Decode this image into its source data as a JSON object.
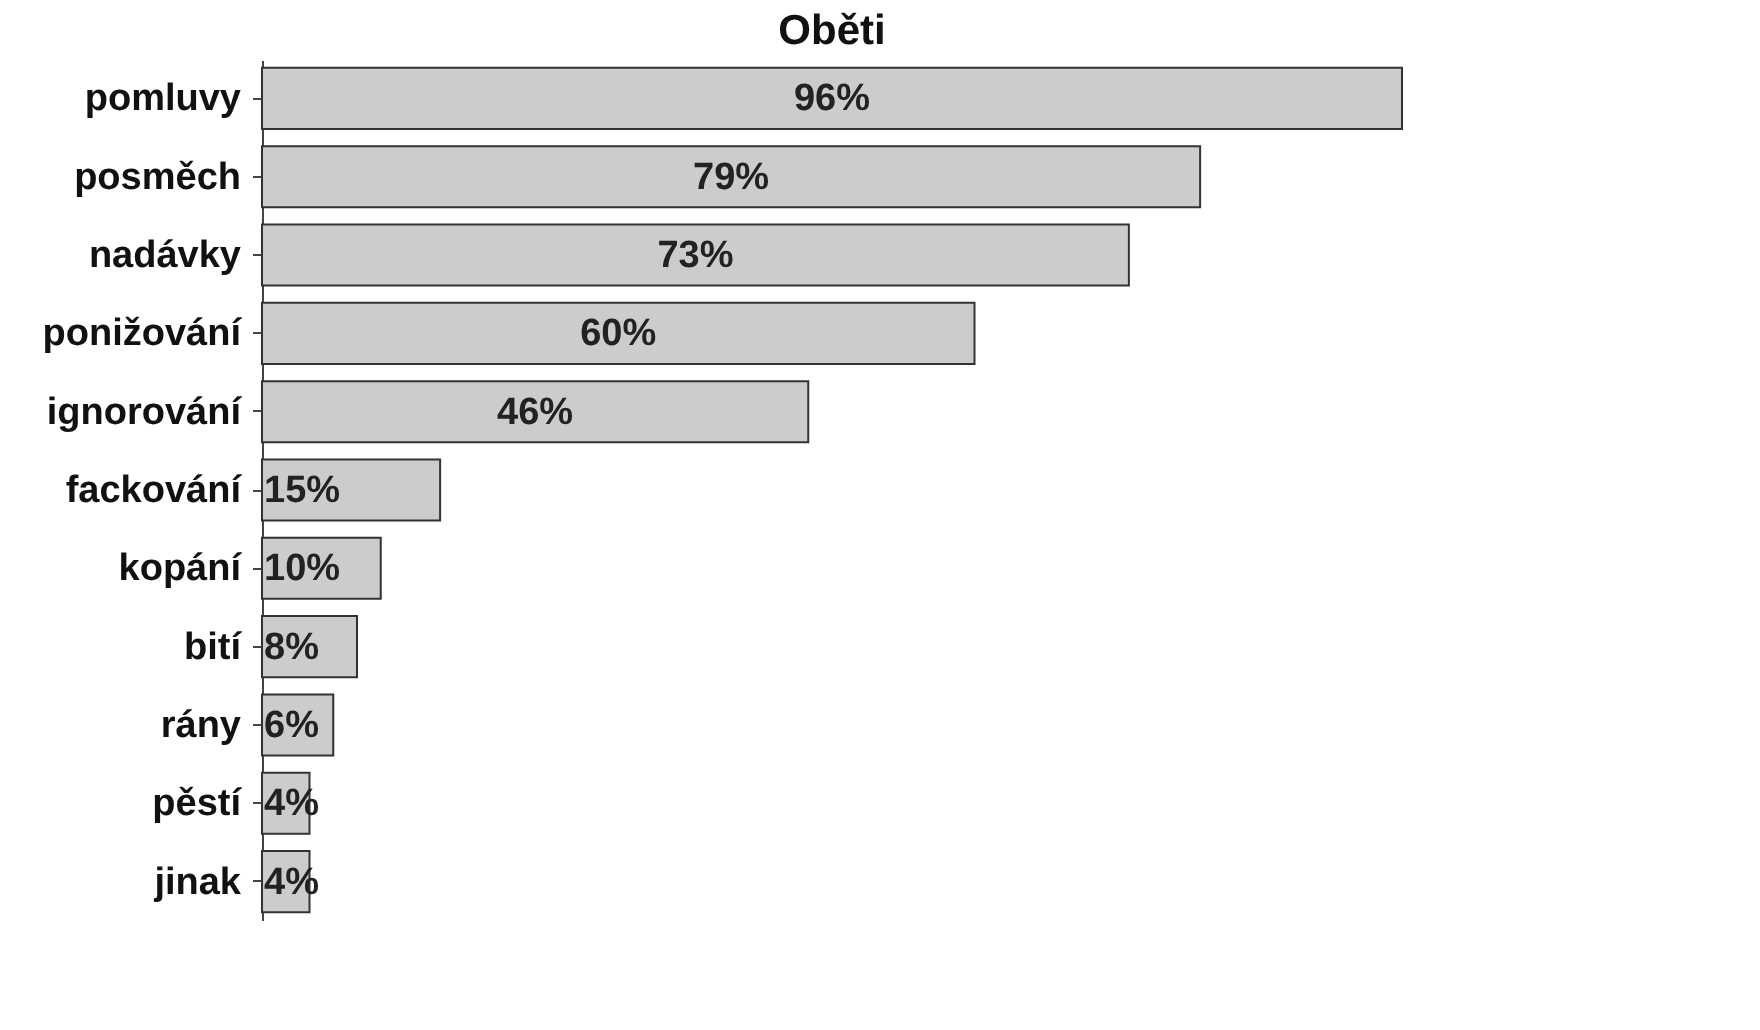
{
  "chart_data": {
    "type": "bar",
    "orientation": "horizontal",
    "title": "Oběti",
    "categories": [
      "pomluvy",
      "posměch",
      "nadávky",
      "ponižování",
      "ignorování",
      "fackování",
      "kopání",
      "bití",
      "rány",
      "pěstí",
      "jinak"
    ],
    "values": [
      96,
      79,
      73,
      60,
      46,
      15,
      10,
      8,
      6,
      4,
      4
    ],
    "value_labels": [
      "96%",
      "79%",
      "73%",
      "60%",
      "46%",
      "15%",
      "10%",
      "8%",
      "6%",
      "4%",
      "4%"
    ],
    "color": "#cccccc",
    "tick_labels": "y"
  }
}
